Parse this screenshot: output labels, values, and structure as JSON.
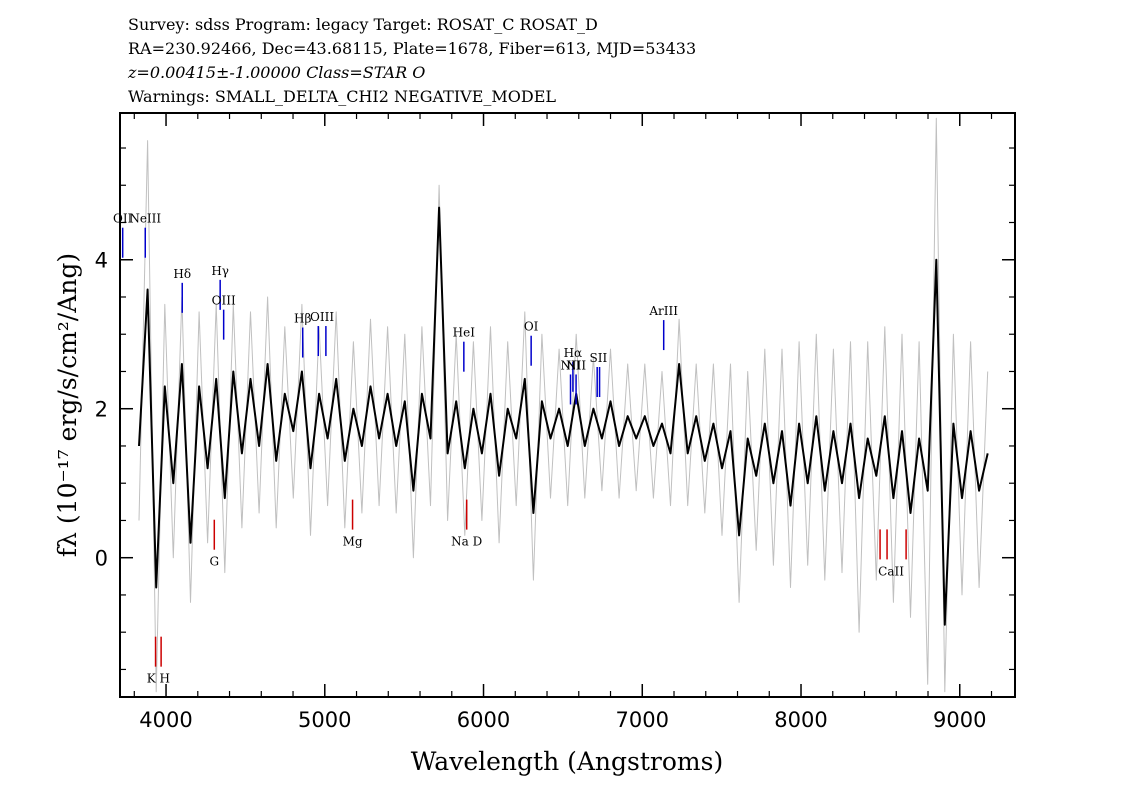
{
  "chart_data": {
    "type": "line",
    "title_lines": [
      "Survey: sdss Program: legacy Target: ROSAT_C ROSAT_D",
      "RA=230.92466, Dec=43.68115, Plate=1678, Fiber=613, MJD=53433",
      "z=0.00415±-1.00000 Class=STAR O",
      "Warnings: SMALL_DELTA_CHI2 NEGATIVE_MODEL"
    ],
    "x_label": "Wavelength (Angstroms)",
    "y_label": "fλ (10⁻¹⁷ erg/s/cm²/Ang)",
    "xlim": [
      3710,
      9348
    ],
    "ylim": [
      -1.87,
      5.97
    ],
    "xticks": [
      4000,
      5000,
      6000,
      7000,
      8000,
      9000
    ],
    "yticks": [
      0,
      2,
      4
    ],
    "xminorticks": [
      3800,
      4200,
      4400,
      4600,
      4800,
      5200,
      5400,
      5600,
      5800,
      6200,
      6400,
      6600,
      6800,
      7200,
      7400,
      7600,
      7800,
      8200,
      8400,
      8600,
      8800,
      9200
    ],
    "yminorticks": [
      -1.5,
      -1,
      -0.5,
      0.5,
      1,
      1.5,
      2.5,
      3,
      3.5,
      4.5,
      5,
      5.5
    ],
    "x": [
      3830,
      3884,
      3938,
      3992,
      4046,
      4100,
      4154,
      4208,
      4262,
      4316,
      4370,
      4424,
      4478,
      4532,
      4586,
      4640,
      4694,
      4748,
      4802,
      4856,
      4910,
      4964,
      5018,
      5072,
      5126,
      5180,
      5234,
      5288,
      5342,
      5396,
      5450,
      5504,
      5558,
      5612,
      5666,
      5720,
      5774,
      5828,
      5882,
      5936,
      5990,
      6044,
      6098,
      6152,
      6206,
      6260,
      6314,
      6368,
      6422,
      6476,
      6530,
      6584,
      6638,
      6692,
      6746,
      6800,
      6854,
      6908,
      6962,
      7016,
      7070,
      7124,
      7178,
      7232,
      7286,
      7340,
      7394,
      7448,
      7502,
      7556,
      7610,
      7664,
      7718,
      7772,
      7826,
      7880,
      7934,
      7988,
      8042,
      8096,
      8150,
      8204,
      8258,
      8312,
      8366,
      8420,
      8474,
      8528,
      8582,
      8636,
      8690,
      8744,
      8798,
      8852,
      8906,
      8960,
      9014,
      9068,
      9122,
      9176
    ],
    "series": [
      {
        "color": "#c0c0c0",
        "width": 1,
        "values": [
          0.5,
          5.6,
          -1.8,
          3.4,
          0.0,
          3.5,
          -0.6,
          3.3,
          0.2,
          3.4,
          -0.2,
          3.4,
          0.4,
          3.3,
          0.6,
          3.5,
          0.4,
          3.1,
          0.8,
          3.4,
          0.3,
          3.1,
          0.7,
          3.3,
          0.4,
          2.9,
          0.6,
          3.2,
          0.7,
          3.1,
          0.6,
          3.0,
          0.0,
          3.1,
          0.7,
          5.0,
          0.5,
          3.0,
          0.3,
          2.9,
          0.5,
          3.1,
          0.2,
          2.9,
          0.7,
          3.3,
          -0.3,
          3.0,
          0.8,
          2.8,
          0.7,
          3.0,
          0.8,
          2.7,
          0.9,
          2.8,
          0.8,
          2.6,
          0.9,
          2.6,
          0.8,
          2.5,
          0.7,
          3.2,
          0.7,
          2.6,
          0.6,
          2.6,
          0.3,
          2.6,
          -0.6,
          2.5,
          0.1,
          2.8,
          -0.1,
          2.8,
          -0.4,
          2.9,
          -0.1,
          3.0,
          -0.3,
          2.8,
          -0.2,
          2.9,
          -1.0,
          2.9,
          -0.3,
          3.1,
          -0.6,
          3.0,
          -0.8,
          2.9,
          -1.7,
          5.9,
          -1.8,
          3.0,
          -0.5,
          2.9,
          -0.4,
          2.5
        ]
      },
      {
        "color": "#000000",
        "width": 2,
        "values": [
          1.5,
          3.6,
          -0.4,
          2.3,
          1.0,
          2.6,
          0.2,
          2.3,
          1.2,
          2.4,
          0.8,
          2.5,
          1.4,
          2.4,
          1.5,
          2.6,
          1.3,
          2.2,
          1.7,
          2.5,
          1.2,
          2.2,
          1.6,
          2.4,
          1.3,
          2.0,
          1.5,
          2.3,
          1.6,
          2.2,
          1.5,
          2.1,
          0.9,
          2.2,
          1.6,
          4.7,
          1.4,
          2.1,
          1.2,
          2.0,
          1.4,
          2.2,
          1.1,
          2.0,
          1.6,
          2.4,
          0.6,
          2.1,
          1.6,
          2.0,
          1.5,
          2.2,
          1.5,
          2.0,
          1.6,
          2.1,
          1.5,
          1.9,
          1.6,
          1.9,
          1.5,
          1.8,
          1.4,
          2.6,
          1.4,
          1.9,
          1.3,
          1.8,
          1.2,
          1.7,
          0.3,
          1.6,
          1.1,
          1.8,
          1.0,
          1.7,
          0.7,
          1.8,
          1.0,
          1.9,
          0.9,
          1.7,
          1.0,
          1.8,
          0.8,
          1.6,
          1.1,
          1.9,
          0.8,
          1.7,
          0.6,
          1.6,
          0.9,
          4.0,
          -0.9,
          1.8,
          0.8,
          1.7,
          0.9,
          1.4
        ]
      }
    ],
    "annotations": [
      {
        "label": "OII",
        "waves": [
          3727
        ],
        "y": 4.43,
        "color": "#0000cc"
      },
      {
        "label": "NeIII",
        "waves": [
          3869
        ],
        "y": 4.43,
        "color": "#0000cc"
      },
      {
        "label": "Hδ",
        "waves": [
          4102
        ],
        "y": 3.69,
        "color": "#0000cc"
      },
      {
        "label": "Hγ",
        "waves": [
          4341
        ],
        "y": 3.73,
        "color": "#0000cc"
      },
      {
        "label": "OIII",
        "waves": [
          4363
        ],
        "y": 3.33,
        "color": "#0000cc"
      },
      {
        "label": "Hβ",
        "waves": [
          4861
        ],
        "y": 3.09,
        "color": "#0000cc"
      },
      {
        "label": "OIII",
        "waves": [
          4959,
          5007
        ],
        "y": 3.11,
        "color": "#0000cc"
      },
      {
        "label": "HeI",
        "waves": [
          5876
        ],
        "y": 2.9,
        "color": "#0000cc"
      },
      {
        "label": "OI",
        "waves": [
          6300
        ],
        "y": 2.98,
        "color": "#0000cc"
      },
      {
        "label": "NII",
        "waves": [
          6548
        ],
        "y": 2.46,
        "color": "#0000cc"
      },
      {
        "label": "Hα",
        "waves": [
          6563
        ],
        "y": 2.63,
        "color": "#0000cc"
      },
      {
        "label": "NII",
        "waves": [
          6583
        ],
        "y": 2.46,
        "color": "#0000cc"
      },
      {
        "label": "SII",
        "waves": [
          6716,
          6731
        ],
        "y": 2.56,
        "color": "#0000cc"
      },
      {
        "label": "ArIII",
        "waves": [
          7135
        ],
        "y": 3.19,
        "color": "#0000cc"
      },
      {
        "label": "K H",
        "waves": [
          3934,
          3969
        ],
        "y": -1.06,
        "color": "#cc0000"
      },
      {
        "label": "G",
        "waves": [
          4304
        ],
        "y": 0.51,
        "color": "#cc0000"
      },
      {
        "label": "Mg",
        "waves": [
          5175
        ],
        "y": 0.78,
        "color": "#cc0000"
      },
      {
        "label": "Na D",
        "waves": [
          5894
        ],
        "y": 0.78,
        "color": "#cc0000"
      },
      {
        "label": "CaII",
        "waves": [
          8498,
          8542,
          8662
        ],
        "y": 0.38,
        "color": "#cc0000"
      }
    ]
  }
}
